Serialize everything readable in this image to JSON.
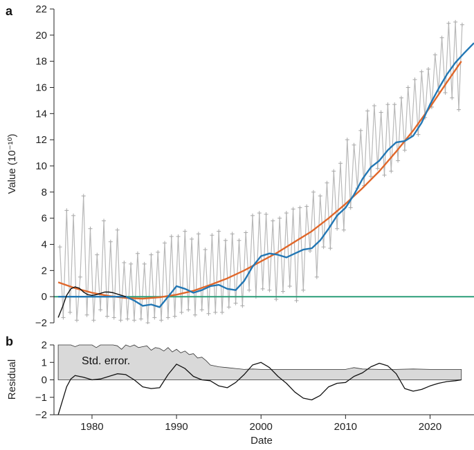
{
  "chart_data": [
    {
      "panel": "a",
      "type": "line",
      "xlabel": "",
      "ylabel": "Value (10⁻¹⁰)",
      "xlim": [
        1975.5,
        2025.2
      ],
      "ylim": [
        -2,
        22
      ],
      "yticks": [
        -2,
        0,
        2,
        4,
        6,
        8,
        10,
        12,
        14,
        16,
        18,
        20,
        22
      ],
      "grid": false,
      "colors": {
        "observed": "#b8b8b8",
        "zero_line": "#2a9d78",
        "quadratic_fit": "#e0672a",
        "smooth_fit": "#2277b4",
        "early_fit": "#111111"
      },
      "series": [
        {
          "role": "observed",
          "x": [
            1976.2,
            1976.6,
            1977.0,
            1977.4,
            1977.8,
            1978.2,
            1978.6,
            1979.0,
            1979.4,
            1979.8,
            1980.2,
            1980.6,
            1981.0,
            1981.4,
            1981.8,
            1982.2,
            1982.6,
            1983.0,
            1983.4,
            1983.8,
            1984.2,
            1984.6,
            1985.0,
            1985.4,
            1985.8,
            1986.2,
            1986.6,
            1987.0,
            1987.4,
            1987.8,
            1988.2,
            1988.6,
            1989.0,
            1989.4,
            1989.8,
            1990.2,
            1990.6,
            1991.0,
            1991.4,
            1991.8,
            1992.2,
            1992.6,
            1993.0,
            1993.4,
            1993.8,
            1994.2,
            1994.6,
            1995.0,
            1995.4,
            1995.8,
            1996.2,
            1996.6,
            1997.0,
            1997.4,
            1997.8,
            1998.2,
            1998.6,
            1999.0,
            1999.4,
            1999.8,
            2000.2,
            2000.6,
            2001.0,
            2001.4,
            2001.8,
            2002.2,
            2002.6,
            2003.0,
            2003.4,
            2003.8,
            2004.2,
            2004.6,
            2005.0,
            2005.4,
            2005.8,
            2006.2,
            2006.6,
            2007.0,
            2007.4,
            2007.8,
            2008.2,
            2008.6,
            2009.0,
            2009.4,
            2009.8,
            2010.2,
            2010.6,
            2011.0,
            2011.4,
            2011.8,
            2012.2,
            2012.6,
            2013.0,
            2013.4,
            2013.8,
            2014.2,
            2014.6,
            2015.0,
            2015.4,
            2015.8,
            2016.2,
            2016.6,
            2017.0,
            2017.4,
            2017.8,
            2018.2,
            2018.6,
            2019.0,
            2019.4,
            2019.8,
            2020.2,
            2020.6,
            2021.0,
            2021.4,
            2021.8,
            2022.2,
            2022.6,
            2023.0,
            2023.4,
            2023.8
          ],
          "y": [
            3.8,
            -1.6,
            6.6,
            -1.2,
            6.2,
            -1.8,
            1.5,
            7.7,
            -1.4,
            5.2,
            -1.8,
            3.2,
            -1.0,
            5.8,
            -1.5,
            4.2,
            -1.6,
            5.1,
            -1.8,
            2.6,
            -1.7,
            2.5,
            -1.8,
            3.3,
            -1.7,
            2.5,
            -2.0,
            3.2,
            -1.6,
            3.4,
            -1.8,
            4.1,
            -1.6,
            4.6,
            -1.5,
            4.6,
            -1.2,
            5.0,
            -1.0,
            4.4,
            -1.4,
            4.8,
            -1.0,
            3.6,
            -1.3,
            4.7,
            -1.2,
            5.0,
            -1.2,
            4.3,
            -0.8,
            4.8,
            -0.5,
            4.3,
            -0.7,
            4.9,
            0.5,
            6.2,
            0.0,
            6.4,
            0.6,
            6.3,
            0.5,
            5.8,
            -0.2,
            6.0,
            0.4,
            6.4,
            0.8,
            6.7,
            -0.3,
            6.8,
            0.5,
            6.9,
            3.5,
            8.0,
            1.5,
            7.7,
            3.8,
            8.7,
            3.7,
            9.6,
            5.2,
            10.2,
            5.1,
            12.0,
            6.8,
            11.6,
            8.3,
            12.7,
            8.5,
            14.2,
            9.2,
            14.6,
            9.8,
            14.1,
            9.3,
            14.7,
            9.6,
            14.7,
            10.4,
            15.2,
            11.2,
            16.0,
            12.3,
            16.6,
            12.4,
            17.2,
            13.7,
            17.4,
            14.5,
            18.5,
            15.7,
            19.8,
            15.6,
            20.9,
            15.2,
            21.0,
            14.3,
            20.8
          ]
        },
        {
          "role": "zero_line",
          "x": [
            1975.5,
            2025.2
          ],
          "y": [
            0,
            0
          ]
        },
        {
          "role": "quadratic_fit",
          "x": [
            1976.0,
            1978.0,
            1980.0,
            1982.0,
            1984.0,
            1986.0,
            1988.0,
            1990.0,
            1992.0,
            1994.0,
            1996.0,
            1998.0,
            2000.0,
            2002.0,
            2004.0,
            2006.0,
            2008.0,
            2010.0,
            2012.0,
            2014.0,
            2016.0,
            2018.0,
            2020.0,
            2022.0,
            2023.7
          ],
          "y": [
            1.1,
            0.65,
            0.3,
            0.05,
            -0.1,
            -0.15,
            -0.05,
            0.15,
            0.45,
            0.9,
            1.4,
            2.0,
            2.7,
            3.4,
            4.2,
            5.0,
            6.0,
            7.1,
            8.3,
            9.6,
            11.1,
            12.7,
            14.5,
            16.4,
            18.0
          ]
        },
        {
          "role": "smooth_fit",
          "x": [
            1976.0,
            1978.0,
            1980.0,
            1982.0,
            1983.0,
            1984.0,
            1985.0,
            1986.0,
            1987.0,
            1988.0,
            1989.0,
            1990.0,
            1991.0,
            1992.0,
            1993.0,
            1994.0,
            1995.0,
            1996.0,
            1997.0,
            1998.0,
            1999.0,
            2000.0,
            2001.0,
            2002.0,
            2003.0,
            2004.0,
            2005.0,
            2006.0,
            2007.0,
            2008.0,
            2009.0,
            2010.0,
            2011.0,
            2012.0,
            2013.0,
            2014.0,
            2015.0,
            2016.0,
            2017.0,
            2018.0,
            2019.0,
            2020.0,
            2021.0,
            2022.0,
            2023.0,
            2024.0,
            2025.2
          ],
          "y": [
            0,
            0,
            0,
            0,
            0,
            0,
            -0.3,
            -0.7,
            -0.6,
            -0.8,
            0.0,
            0.8,
            0.6,
            0.3,
            0.5,
            0.8,
            0.9,
            0.6,
            0.5,
            1.2,
            2.3,
            3.1,
            3.3,
            3.2,
            3.0,
            3.3,
            3.6,
            3.7,
            4.3,
            5.2,
            6.2,
            6.8,
            7.8,
            9.0,
            9.9,
            10.4,
            11.2,
            11.8,
            11.9,
            12.3,
            13.3,
            14.7,
            15.9,
            17.0,
            17.9,
            18.6,
            19.4
          ]
        },
        {
          "role": "early_fit",
          "x": [
            1976.0,
            1976.5,
            1977.0,
            1977.5,
            1978.0,
            1978.5,
            1979.0,
            1979.5,
            1980.0,
            1980.5,
            1981.0,
            1981.5,
            1982.0,
            1982.5,
            1983.0,
            1983.5,
            1984.0
          ],
          "y": [
            -1.6,
            -0.8,
            0.1,
            0.6,
            0.75,
            0.65,
            0.35,
            0.15,
            0.1,
            0.15,
            0.25,
            0.35,
            0.35,
            0.3,
            0.2,
            0.1,
            0.0
          ]
        }
      ]
    },
    {
      "panel": "b",
      "type": "area",
      "xlabel": "Date",
      "ylabel": "Residual",
      "xlim": [
        1975.5,
        2025.2
      ],
      "ylim": [
        -2,
        2
      ],
      "xticks": [
        1980,
        1990,
        2000,
        2010,
        2020
      ],
      "yticks": [
        -2,
        -1,
        0,
        1,
        2
      ],
      "annotation": "Std. error.",
      "grid": false,
      "colors": {
        "std_error_fill": "#d9d9d9",
        "line": "#111111"
      },
      "series": [
        {
          "role": "std_error",
          "x": [
            1976.0,
            1976.5,
            1977.0,
            1977.5,
            1978.0,
            1978.5,
            1979.0,
            1979.5,
            1980.0,
            1980.5,
            1981.0,
            1981.5,
            1982.0,
            1982.5,
            1983.0,
            1983.5,
            1984.0,
            1984.5,
            1985.0,
            1985.5,
            1986.0,
            1986.5,
            1987.0,
            1987.5,
            1988.0,
            1988.5,
            1989.0,
            1989.5,
            1990.0,
            1990.5,
            1991.0,
            1991.5,
            1992.0,
            1992.5,
            1993.0,
            1993.5,
            1994.0,
            1995.0,
            1996.0,
            1997.0,
            1998.0,
            1999.0,
            2000.0,
            2002.0,
            2004.0,
            2006.0,
            2008.0,
            2010.0,
            2011.0,
            2012.0,
            2014.0,
            2016.0,
            2018.0,
            2020.0,
            2022.0,
            2023.7
          ],
          "y": [
            2.0,
            2.0,
            2.0,
            2.0,
            1.9,
            2.0,
            2.0,
            2.0,
            2.0,
            1.85,
            2.0,
            2.0,
            2.0,
            2.0,
            1.95,
            1.75,
            2.0,
            1.9,
            2.0,
            1.85,
            1.9,
            1.95,
            1.7,
            1.85,
            1.8,
            1.65,
            1.85,
            1.6,
            1.75,
            1.55,
            1.65,
            1.45,
            1.5,
            1.25,
            1.3,
            1.1,
            0.85,
            0.75,
            0.7,
            0.65,
            0.6,
            0.62,
            0.6,
            0.6,
            0.6,
            0.6,
            0.6,
            0.6,
            0.7,
            0.62,
            0.6,
            0.6,
            0.62,
            0.6,
            0.6,
            0.6
          ]
        },
        {
          "role": "residual",
          "x": [
            1976.0,
            1976.5,
            1977.0,
            1977.5,
            1978.0,
            1979.0,
            1980.0,
            1981.0,
            1982.0,
            1983.0,
            1984.0,
            1985.0,
            1986.0,
            1987.0,
            1988.0,
            1989.0,
            1990.0,
            1991.0,
            1992.0,
            1993.0,
            1994.0,
            1995.0,
            1996.0,
            1997.0,
            1998.0,
            1999.0,
            2000.0,
            2001.0,
            2002.0,
            2003.0,
            2004.0,
            2005.0,
            2006.0,
            2007.0,
            2008.0,
            2009.0,
            2010.0,
            2011.0,
            2012.0,
            2013.0,
            2014.0,
            2015.0,
            2016.0,
            2017.0,
            2018.0,
            2019.0,
            2020.0,
            2021.0,
            2022.0,
            2023.0,
            2023.7
          ],
          "y": [
            -2.0,
            -1.2,
            -0.4,
            0.05,
            0.25,
            0.15,
            0.0,
            0.05,
            0.2,
            0.35,
            0.3,
            0.0,
            -0.4,
            -0.5,
            -0.45,
            0.3,
            0.9,
            0.65,
            0.2,
            0.0,
            -0.05,
            -0.35,
            -0.45,
            -0.15,
            0.3,
            0.85,
            1.0,
            0.7,
            0.2,
            -0.2,
            -0.7,
            -1.05,
            -1.15,
            -0.9,
            -0.4,
            -0.2,
            -0.15,
            0.2,
            0.4,
            0.75,
            0.95,
            0.8,
            0.35,
            -0.5,
            -0.65,
            -0.55,
            -0.35,
            -0.2,
            -0.1,
            -0.05,
            0.0
          ]
        }
      ]
    }
  ]
}
